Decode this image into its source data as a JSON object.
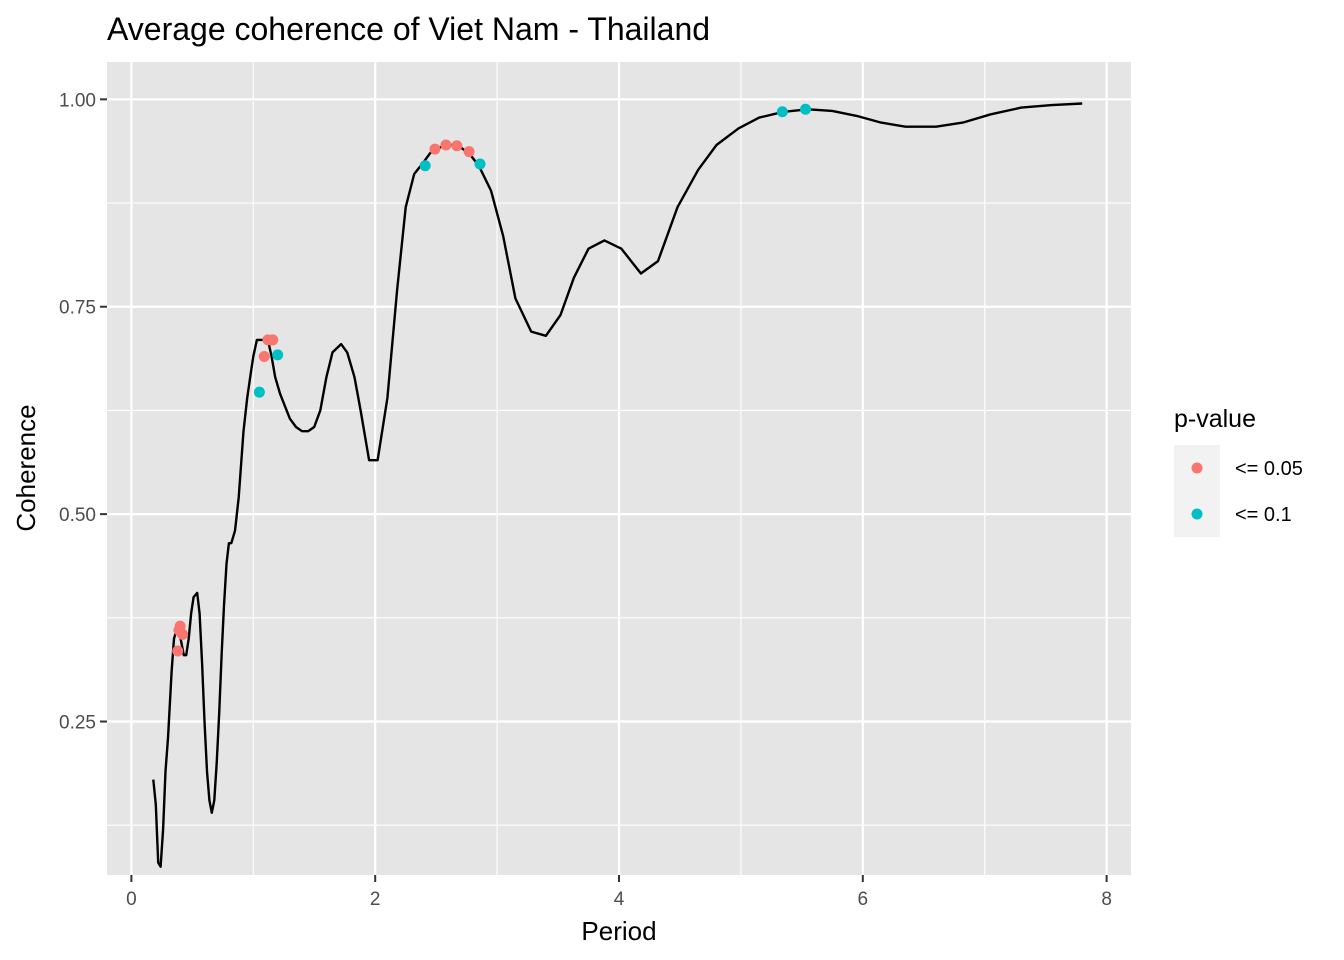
{
  "chart_data": {
    "type": "line",
    "title": "Average coherence of Viet Nam - Thailand",
    "xlabel": "Period",
    "ylabel": "Coherence",
    "xlim": [
      -0.2,
      8.2
    ],
    "ylim": [
      0.065,
      1.045
    ],
    "x_ticks": [
      0,
      2,
      4,
      6,
      8
    ],
    "x_tick_labels": [
      "0",
      "2",
      "4",
      "6",
      "8"
    ],
    "x_minor_ticks": [
      1,
      3,
      5,
      7
    ],
    "y_ticks": [
      0.25,
      0.5,
      0.75,
      1.0
    ],
    "y_tick_labels": [
      "0.25",
      "0.50",
      "0.75",
      "1.00"
    ],
    "y_minor_ticks": [
      0.125,
      0.375,
      0.625,
      0.875
    ],
    "grid": true,
    "panel_color": "#e5e5e5",
    "grid_color": "#ffffff",
    "line_color": "#000000",
    "line": {
      "x": [
        0.18,
        0.2,
        0.22,
        0.24,
        0.26,
        0.28,
        0.3,
        0.33,
        0.35,
        0.37,
        0.39,
        0.41,
        0.43,
        0.45,
        0.47,
        0.49,
        0.51,
        0.54,
        0.56,
        0.58,
        0.6,
        0.62,
        0.64,
        0.66,
        0.68,
        0.7,
        0.72,
        0.74,
        0.76,
        0.78,
        0.8,
        0.82,
        0.85,
        0.88,
        0.92,
        0.95,
        0.98,
        1.0,
        1.03,
        1.05,
        1.08,
        1.12,
        1.15,
        1.18,
        1.22,
        1.26,
        1.3,
        1.35,
        1.4,
        1.45,
        1.5,
        1.55,
        1.6,
        1.65,
        1.72,
        1.77,
        1.83,
        1.88,
        1.95,
        2.02,
        2.1,
        2.18,
        2.25,
        2.32,
        2.4,
        2.45,
        2.5,
        2.58,
        2.67,
        2.77,
        2.85,
        2.95,
        3.05,
        3.15,
        3.28,
        3.4,
        3.52,
        3.63,
        3.75,
        3.88,
        4.02,
        4.18,
        4.32,
        4.48,
        4.65,
        4.8,
        4.98,
        5.15,
        5.35,
        5.55,
        5.75,
        5.95,
        6.15,
        6.35,
        6.6,
        6.82,
        7.05,
        7.3,
        7.55,
        7.8
      ],
      "y": [
        0.18,
        0.15,
        0.08,
        0.075,
        0.12,
        0.19,
        0.23,
        0.31,
        0.35,
        0.36,
        0.36,
        0.345,
        0.33,
        0.33,
        0.35,
        0.38,
        0.4,
        0.405,
        0.38,
        0.32,
        0.25,
        0.19,
        0.155,
        0.14,
        0.155,
        0.2,
        0.26,
        0.33,
        0.39,
        0.44,
        0.465,
        0.465,
        0.48,
        0.52,
        0.6,
        0.64,
        0.67,
        0.69,
        0.71,
        0.71,
        0.71,
        0.71,
        0.69,
        0.665,
        0.645,
        0.63,
        0.615,
        0.605,
        0.6,
        0.6,
        0.605,
        0.625,
        0.665,
        0.695,
        0.705,
        0.695,
        0.665,
        0.625,
        0.565,
        0.565,
        0.64,
        0.77,
        0.87,
        0.91,
        0.925,
        0.935,
        0.94,
        0.945,
        0.945,
        0.935,
        0.92,
        0.89,
        0.835,
        0.76,
        0.72,
        0.715,
        0.74,
        0.785,
        0.82,
        0.83,
        0.82,
        0.79,
        0.805,
        0.87,
        0.915,
        0.945,
        0.965,
        0.978,
        0.985,
        0.988,
        0.986,
        0.98,
        0.972,
        0.967,
        0.967,
        0.972,
        0.982,
        0.99,
        0.993,
        0.995
      ]
    },
    "series": [
      {
        "name": "<= 0.05",
        "color": "#F8766D",
        "points": [
          {
            "x": 0.38,
            "y": 0.335
          },
          {
            "x": 0.39,
            "y": 0.36
          },
          {
            "x": 0.4,
            "y": 0.365
          },
          {
            "x": 0.42,
            "y": 0.355
          },
          {
            "x": 1.09,
            "y": 0.69
          },
          {
            "x": 1.12,
            "y": 0.71
          },
          {
            "x": 1.16,
            "y": 0.71
          },
          {
            "x": 2.49,
            "y": 0.94
          },
          {
            "x": 2.58,
            "y": 0.945
          },
          {
            "x": 2.67,
            "y": 0.944
          },
          {
            "x": 2.77,
            "y": 0.937
          }
        ]
      },
      {
        "name": "<= 0.1",
        "color": "#00BFC4",
        "points": [
          {
            "x": 1.05,
            "y": 0.647
          },
          {
            "x": 1.2,
            "y": 0.692
          },
          {
            "x": 2.41,
            "y": 0.92
          },
          {
            "x": 2.86,
            "y": 0.922
          },
          {
            "x": 5.34,
            "y": 0.985
          },
          {
            "x": 5.53,
            "y": 0.988
          }
        ]
      }
    ],
    "legend": {
      "title": "p-value",
      "placement": "right",
      "items": [
        "<= 0.05",
        "<= 0.1"
      ],
      "background": "#f2f2f2"
    }
  }
}
